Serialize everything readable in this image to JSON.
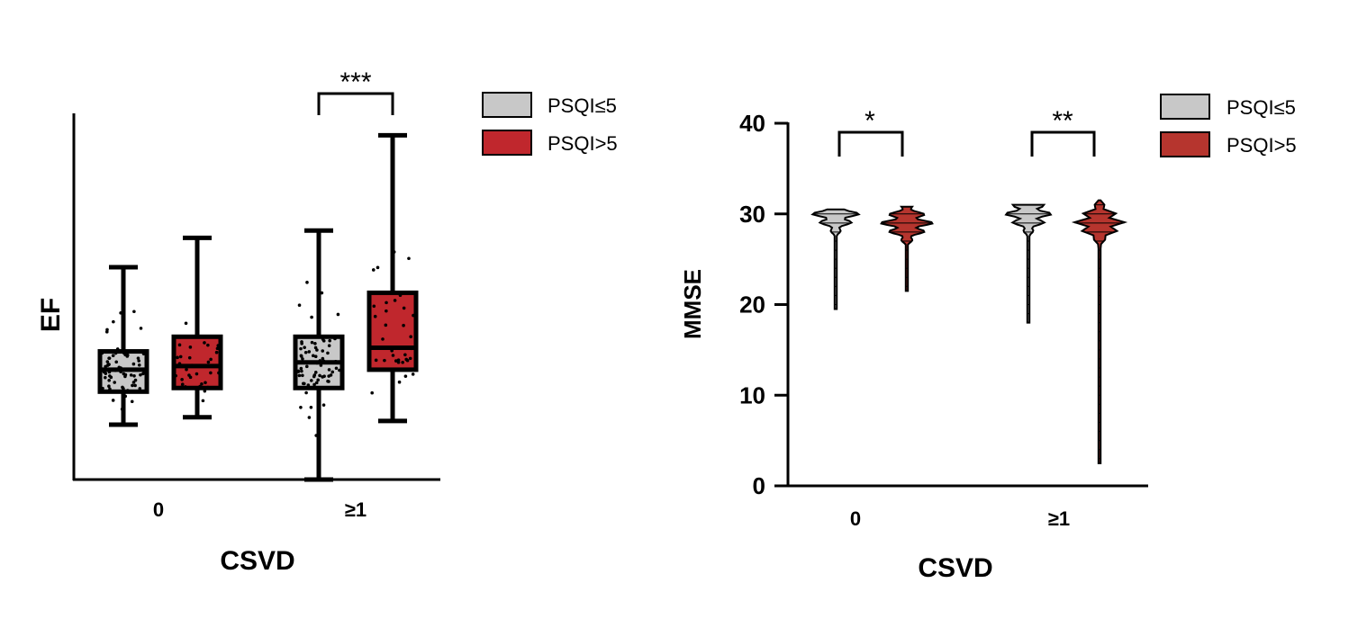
{
  "colors": {
    "group_low": "#c8c8c8",
    "group_high": "#c0272d",
    "violin_high": "#b6352e",
    "ink": "#000000"
  },
  "chart_data": [
    {
      "type": "box",
      "title": "",
      "ylabel": "EF",
      "xlabel": "CSVD",
      "categories": [
        "0",
        "≥1"
      ],
      "legend": [
        "PSQI≤5",
        "PSQI>5"
      ],
      "legend_position": "top-right",
      "yrange": [
        0,
        1
      ],
      "series": [
        {
          "name": "PSQI≤5",
          "boxes": [
            {
              "min": 0.15,
              "q1": 0.24,
              "median": 0.3,
              "q3": 0.35,
              "max": 0.58
            },
            {
              "min": 0.0,
              "q1": 0.25,
              "median": 0.32,
              "q3": 0.39,
              "max": 0.68
            }
          ]
        },
        {
          "name": "PSQI>5",
          "boxes": [
            {
              "min": 0.17,
              "q1": 0.25,
              "median": 0.31,
              "q3": 0.39,
              "max": 0.66
            },
            {
              "min": 0.16,
              "q1": 0.3,
              "median": 0.36,
              "q3": 0.51,
              "max": 0.94
            }
          ]
        }
      ],
      "significance": [
        {
          "category": "≥1",
          "label": "***"
        }
      ]
    },
    {
      "type": "violin",
      "title": "",
      "ylabel": "MMSE",
      "xlabel": "CSVD",
      "categories": [
        "0",
        "≥1"
      ],
      "legend": [
        "PSQI≤5",
        "PSQI>5"
      ],
      "legend_position": "top-right",
      "ylim": [
        0,
        40
      ],
      "yticks": [
        "0",
        "10",
        "20",
        "30",
        "40"
      ],
      "series": [
        {
          "name": "PSQI≤5",
          "ranges": [
            {
              "min": 19.5,
              "max": 30.5,
              "peak": 30
            },
            {
              "min": 18,
              "max": 31,
              "peak": 30
            }
          ]
        },
        {
          "name": "PSQI>5",
          "ranges": [
            {
              "min": 21.5,
              "max": 30.8,
              "peak": 29
            },
            {
              "min": 2.5,
              "max": 31.5,
              "peak": 29
            }
          ]
        }
      ],
      "significance": [
        {
          "category": "0",
          "label": "*"
        },
        {
          "category": "≥1",
          "label": "**"
        }
      ]
    }
  ]
}
